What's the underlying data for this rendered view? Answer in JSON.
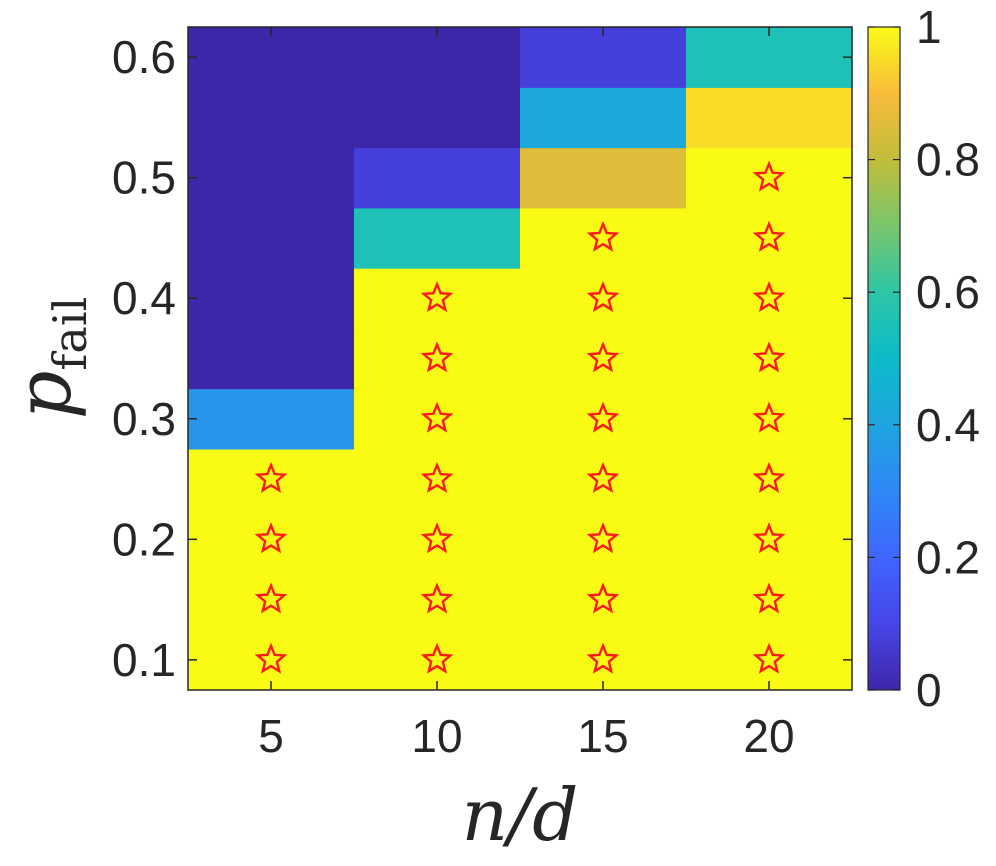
{
  "chart_data": {
    "type": "heatmap",
    "xlabel": "n/d",
    "ylabel": "p",
    "ylabel_subscript": "fail",
    "x": [
      5,
      10,
      15,
      20
    ],
    "y": [
      0.1,
      0.15,
      0.2,
      0.25,
      0.3,
      0.35,
      0.4,
      0.45,
      0.5,
      0.55,
      0.6
    ],
    "x_ticks": [
      5,
      10,
      15,
      20
    ],
    "x_tick_labels": [
      "5",
      "10",
      "15",
      "20"
    ],
    "y_ticks": [
      0.1,
      0.2,
      0.3,
      0.4,
      0.5,
      0.6
    ],
    "y_tick_labels": [
      "0.1",
      "0.2",
      "0.3",
      "0.4",
      "0.5",
      "0.6"
    ],
    "values": [
      [
        1,
        1,
        1,
        1
      ],
      [
        1,
        1,
        1,
        1
      ],
      [
        1,
        1,
        1,
        1
      ],
      [
        1,
        1,
        1,
        1
      ],
      [
        0.35,
        1,
        1,
        1
      ],
      [
        0,
        1,
        1,
        1
      ],
      [
        0,
        1,
        1,
        1
      ],
      [
        0,
        0.55,
        1,
        1
      ],
      [
        0,
        0.08,
        0.85,
        1
      ],
      [
        0,
        0,
        0.42,
        0.95
      ],
      [
        0,
        0,
        0.08,
        0.55
      ]
    ],
    "markers": [
      {
        "x": 5,
        "y": 0.1
      },
      {
        "x": 5,
        "y": 0.15
      },
      {
        "x": 5,
        "y": 0.2
      },
      {
        "x": 5,
        "y": 0.25
      },
      {
        "x": 10,
        "y": 0.1
      },
      {
        "x": 10,
        "y": 0.15
      },
      {
        "x": 10,
        "y": 0.2
      },
      {
        "x": 10,
        "y": 0.25
      },
      {
        "x": 10,
        "y": 0.3
      },
      {
        "x": 10,
        "y": 0.35
      },
      {
        "x": 10,
        "y": 0.4
      },
      {
        "x": 15,
        "y": 0.1
      },
      {
        "x": 15,
        "y": 0.15
      },
      {
        "x": 15,
        "y": 0.2
      },
      {
        "x": 15,
        "y": 0.25
      },
      {
        "x": 15,
        "y": 0.3
      },
      {
        "x": 15,
        "y": 0.35
      },
      {
        "x": 15,
        "y": 0.4
      },
      {
        "x": 15,
        "y": 0.45
      },
      {
        "x": 20,
        "y": 0.1
      },
      {
        "x": 20,
        "y": 0.15
      },
      {
        "x": 20,
        "y": 0.2
      },
      {
        "x": 20,
        "y": 0.25
      },
      {
        "x": 20,
        "y": 0.3
      },
      {
        "x": 20,
        "y": 0.35
      },
      {
        "x": 20,
        "y": 0.4
      },
      {
        "x": 20,
        "y": 0.45
      },
      {
        "x": 20,
        "y": 0.5
      }
    ],
    "marker_symbol": "star",
    "marker_color": "#ff1a1a",
    "colormap": "parula",
    "colorbar": {
      "range": [
        0,
        1
      ],
      "ticks": [
        0,
        0.2,
        0.4,
        0.6,
        0.8,
        1
      ],
      "tick_labels": [
        "0",
        "0.2",
        "0.4",
        "0.6",
        "0.8",
        "1"
      ]
    }
  }
}
